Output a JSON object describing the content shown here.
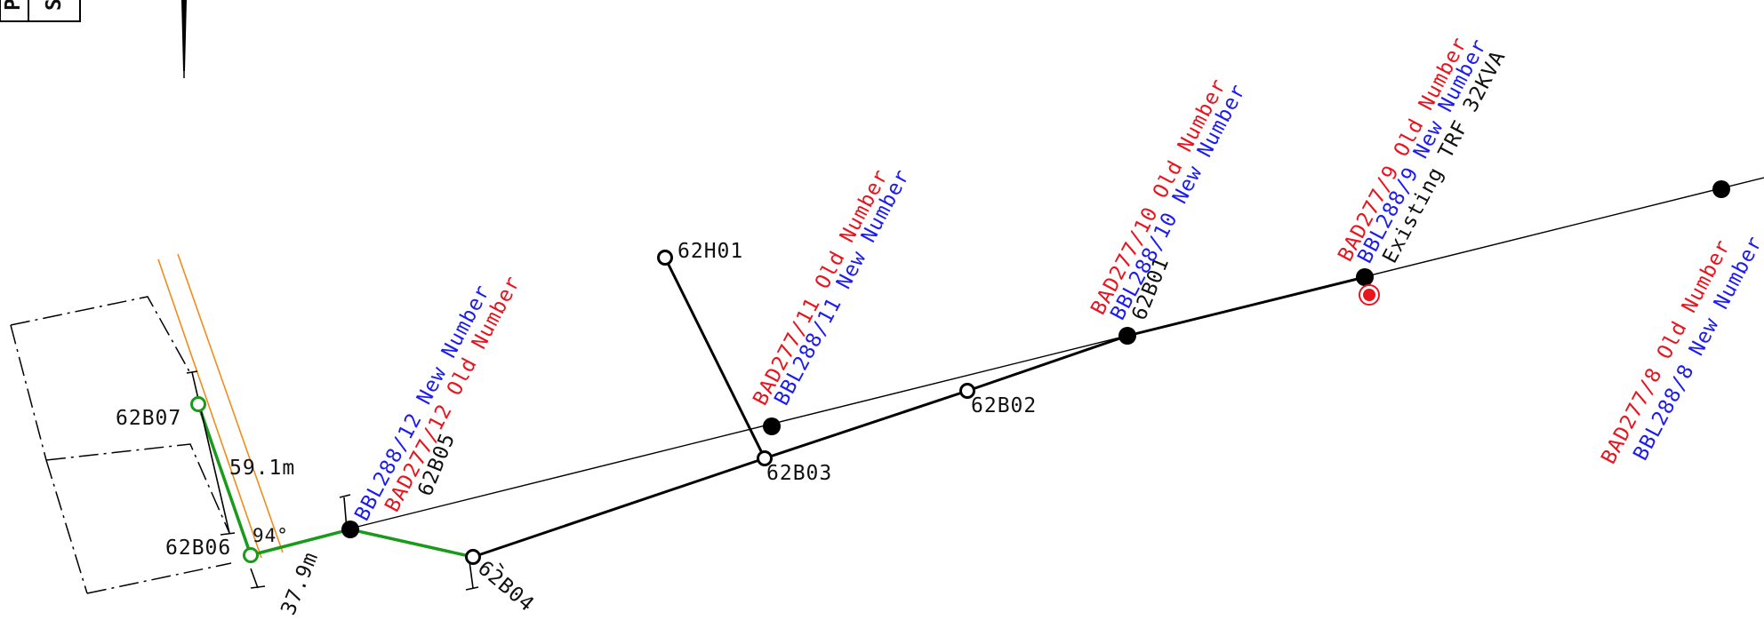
{
  "title_block": {
    "letters": [
      "P",
      "S"
    ]
  },
  "colors": {
    "existing_line": "#000000",
    "proposed_line": "#1a9a1a",
    "boundary": "#f08c1c",
    "old_number": "#e8141e",
    "new_number": "#1c1cf0",
    "transformer_marker": "#e8141e"
  },
  "nodes": {
    "n62H01": "62H01",
    "n62B07": "62B07",
    "n62B06": "62B06",
    "n62B05": "62B05",
    "n62B04": "62B04",
    "n62B03": "62B03",
    "n62B02": "62B02",
    "n62B01": "62B01"
  },
  "poles": {
    "p12": {
      "new": "BBL288/12 New Number",
      "old": "BAD277/12 Old Number"
    },
    "p11": {
      "old": "BAD277/11 Old Number",
      "new": "BBL288/11 New Number"
    },
    "p10": {
      "old": "BAD277/10 Old Number",
      "new": "BBL288/10 New Number"
    },
    "p9": {
      "old": "BAD277/9 Old Number",
      "new": "BBL288/9 New Number",
      "note": "Existing TRF 32KVA"
    },
    "p8": {
      "old": "BAD277/8 Old Number",
      "new": "BBL288/8 New Number"
    }
  },
  "dimensions": {
    "d1": "59.1m",
    "d2": "37.9m",
    "angle": "94°"
  }
}
